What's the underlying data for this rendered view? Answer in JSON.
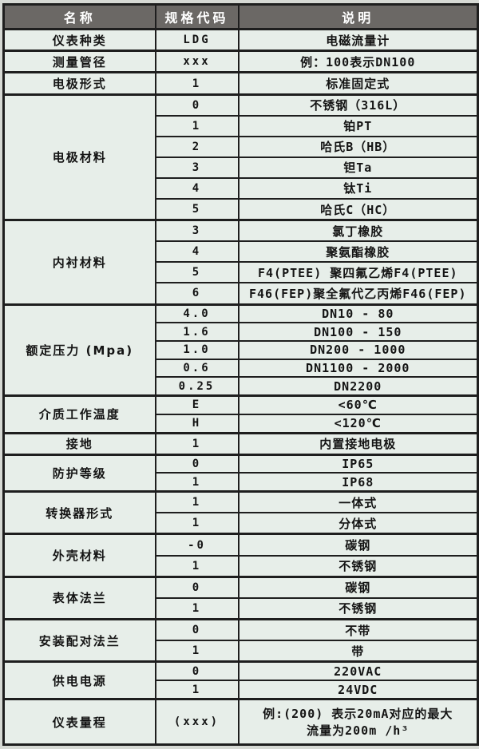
{
  "page": {
    "background_color": "#d6d9d4",
    "cell_background_color": "#e7eee9",
    "header_background_color": "#6b6865",
    "header_text_color": "#ffffff",
    "border_color": "#1e1e1e",
    "body_text_color": "#141414"
  },
  "table": {
    "headers": [
      "名称",
      "规格代码",
      "说明"
    ],
    "groups": [
      {
        "name": "仪表种类",
        "rows": [
          {
            "code": "LDG",
            "desc": "电磁流量计"
          }
        ]
      },
      {
        "name": "测量管径",
        "rows": [
          {
            "code": "xxx",
            "desc": "例：100表示DN100"
          }
        ]
      },
      {
        "name": "电极形式",
        "rows": [
          {
            "code": "1",
            "desc": "标准固定式"
          }
        ]
      },
      {
        "name": "电极材料",
        "rows": [
          {
            "code": "0",
            "desc": "不锈钢（316L）"
          },
          {
            "code": "1",
            "desc": "铂PT"
          },
          {
            "code": "2",
            "desc": "哈氏B（HB）"
          },
          {
            "code": "3",
            "desc": "钽Ta"
          },
          {
            "code": "4",
            "desc": "钛Ti"
          },
          {
            "code": "5",
            "desc": "哈氏C（HC）"
          }
        ]
      },
      {
        "name": "内衬材料",
        "rows": [
          {
            "code": "3",
            "desc": "氯丁橡胶"
          },
          {
            "code": "4",
            "desc": "聚氨酯橡胶"
          },
          {
            "code": "5",
            "desc": "F4(PTEE) 聚四氟乙烯F4(PTEE)"
          },
          {
            "code": "6",
            "desc": "F46(FEP)聚全氟代乙丙烯F46(FEP)"
          }
        ]
      },
      {
        "name": "额定压力 (Mpa)",
        "rows": [
          {
            "code": "4.0",
            "desc": "DN10 - 80"
          },
          {
            "code": "1.6",
            "desc": "DN100 - 150"
          },
          {
            "code": "1.0",
            "desc": "DN200 - 1000"
          },
          {
            "code": "0.6",
            "desc": "DN1100 - 2000"
          },
          {
            "code": "0.25",
            "desc": "DN2200"
          }
        ]
      },
      {
        "name": "介质工作温度",
        "rows": [
          {
            "code": "E",
            "desc": "<60℃"
          },
          {
            "code": "H",
            "desc": "<120℃"
          }
        ]
      },
      {
        "name": "接地",
        "rows": [
          {
            "code": "1",
            "desc": "内置接地电极"
          }
        ]
      },
      {
        "name": "防护等级",
        "rows": [
          {
            "code": "0",
            "desc": "IP65"
          },
          {
            "code": "1",
            "desc": "IP68"
          }
        ]
      },
      {
        "name": "转换器形式",
        "rows": [
          {
            "code": "1",
            "desc": "一体式"
          },
          {
            "code": "1",
            "desc": "分体式"
          }
        ]
      },
      {
        "name": "外壳材料",
        "rows": [
          {
            "code": "-0",
            "desc": "碳钢"
          },
          {
            "code": "1",
            "desc": "不锈钢"
          }
        ]
      },
      {
        "name": "表体法兰",
        "rows": [
          {
            "code": "0",
            "desc": "碳钢"
          },
          {
            "code": "1",
            "desc": "不锈钢"
          }
        ]
      },
      {
        "name": "安装配对法兰",
        "rows": [
          {
            "code": "0",
            "desc": "不带"
          },
          {
            "code": "1",
            "desc": "带"
          }
        ]
      },
      {
        "name": "供电电源",
        "rows": [
          {
            "code": "0",
            "desc": "220VAC"
          },
          {
            "code": "1",
            "desc": "24VDC"
          }
        ]
      },
      {
        "name": "仪表量程",
        "tall": true,
        "rows": [
          {
            "code": "(xxx)",
            "desc": "例:(200) 表示20mA对应的最大\n流量为200m /h³"
          }
        ]
      }
    ]
  }
}
